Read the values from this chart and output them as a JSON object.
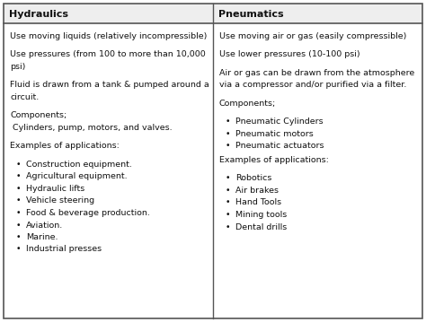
{
  "col1_header": "Hydraulics",
  "col2_header": "Pneumatics",
  "col1_content": [
    {
      "type": "text",
      "text": "Use moving liquids (relatively incompressible)"
    },
    {
      "type": "text",
      "text": "Use pressures (from 100 to more than 10,000\npsi)"
    },
    {
      "type": "text",
      "text": "Fluid is drawn from a tank & pumped around a\ncircuit."
    },
    {
      "type": "text",
      "text": "Components;\n Cylinders, pump, motors, and valves."
    },
    {
      "type": "text",
      "text": "Examples of applications:"
    },
    {
      "type": "bullet",
      "text": "Construction equipment."
    },
    {
      "type": "bullet",
      "text": "Agricultural equipment."
    },
    {
      "type": "bullet",
      "text": "Hydraulic lifts"
    },
    {
      "type": "bullet",
      "text": "Vehicle steering"
    },
    {
      "type": "bullet",
      "text": "Food & beverage production."
    },
    {
      "type": "bullet",
      "text": "Aviation."
    },
    {
      "type": "bullet",
      "text": "Marine."
    },
    {
      "type": "bullet",
      "text": "Industrial presses"
    }
  ],
  "col2_content": [
    {
      "type": "text",
      "text": "Use moving air or gas (easily compressible)"
    },
    {
      "type": "text",
      "text": "Use lower pressures (10-100 psi)"
    },
    {
      "type": "text",
      "text": "Air or gas can be drawn from the atmosphere\nvia a compressor and/or purified via a filter."
    },
    {
      "type": "text",
      "text": "Components;"
    },
    {
      "type": "bullet",
      "text": "Pneumatic Cylinders"
    },
    {
      "type": "bullet",
      "text": "Pneumatic motors"
    },
    {
      "type": "bullet",
      "text": "Pneumatic actuators"
    },
    {
      "type": "text",
      "text": "Examples of applications:"
    },
    {
      "type": "bullet",
      "text": "Robotics"
    },
    {
      "type": "bullet",
      "text": "Air brakes"
    },
    {
      "type": "bullet",
      "text": "Hand Tools"
    },
    {
      "type": "bullet",
      "text": "Mining tools"
    },
    {
      "type": "bullet",
      "text": "Dental drills"
    }
  ],
  "bg_color": "#ffffff",
  "header_bg": "#eeeeee",
  "border_color": "#555555",
  "text_color": "#111111",
  "font_size": 6.8,
  "header_font_size": 8.0
}
